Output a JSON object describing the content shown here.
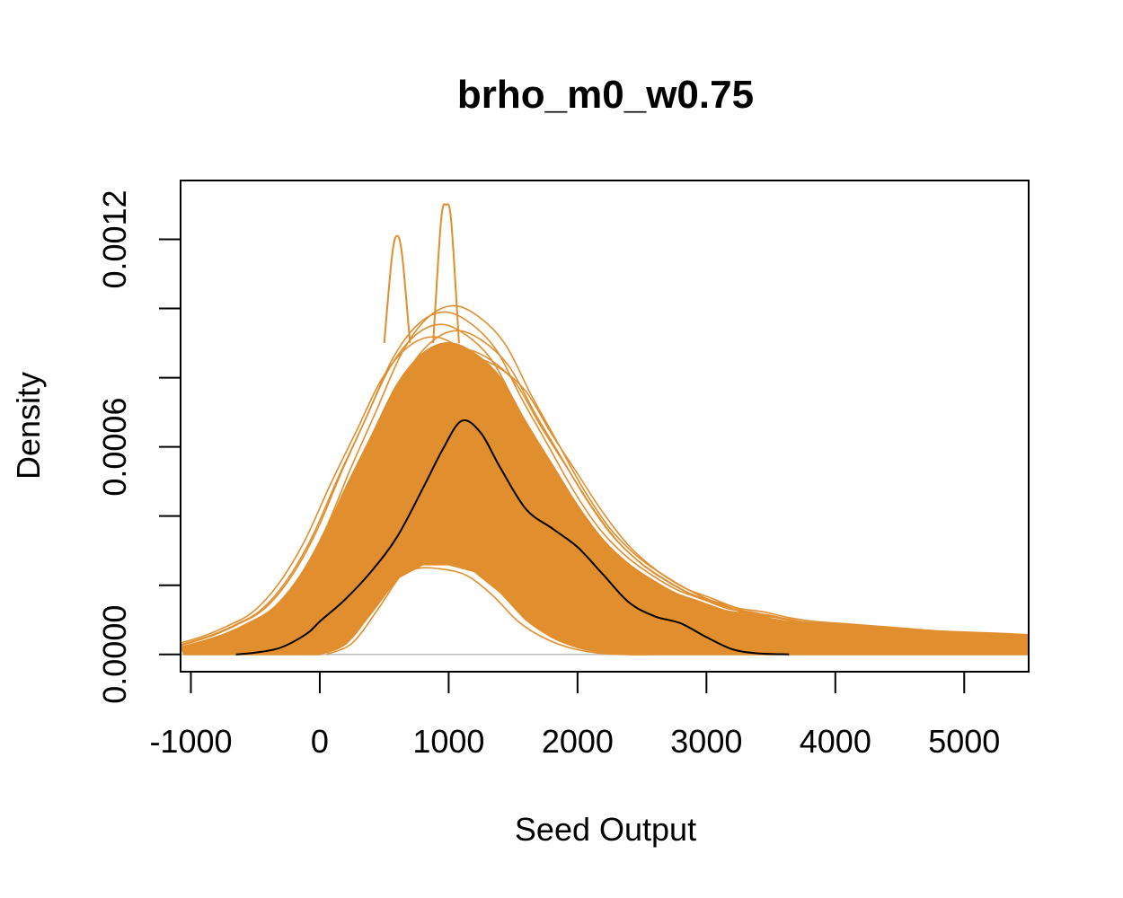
{
  "chart_data": {
    "type": "line",
    "title": "brho_m0_w0.75",
    "xlabel": "Seed Output",
    "ylabel": "Density",
    "xlim": [
      -1080,
      5500
    ],
    "ylim": [
      -5e-05,
      0.00137
    ],
    "x_ticks": [
      -1000,
      0,
      1000,
      2000,
      3000,
      4000,
      5000
    ],
    "x_tick_labels": [
      "-1000",
      "0",
      "1000",
      "2000",
      "3000",
      "4000",
      "5000"
    ],
    "y_ticks": [
      0,
      0.0002,
      0.0004,
      0.0006,
      0.0008,
      0.001,
      0.0012
    ],
    "y_tick_labels": [
      "0.0000",
      "",
      "",
      "0.0006",
      "",
      "",
      "0.0012"
    ],
    "grid": false,
    "legend": "none",
    "colors": {
      "simulated": "#E08E2E",
      "observed": "#000000",
      "baseline": "#BEBEBE"
    },
    "series": [
      {
        "role": "simulated-envelope-upper",
        "x": [
          -1080,
          -800,
          -600,
          -400,
          -200,
          0,
          200,
          400,
          600,
          800,
          1000,
          1200,
          1400,
          1600,
          1800,
          2000,
          2200,
          2400,
          2600,
          2800,
          3000,
          3200,
          3400,
          3600,
          3800,
          4000,
          4400,
          4800,
          5200,
          5500
        ],
        "y": [
          2e-05,
          5e-05,
          8e-05,
          0.00012,
          0.0002,
          0.00032,
          0.00048,
          0.00063,
          0.00078,
          0.00087,
          0.0009,
          0.00087,
          0.0008,
          0.00067,
          0.00055,
          0.00043,
          0.00033,
          0.00026,
          0.00021,
          0.00017,
          0.000145,
          0.00012,
          0.00011,
          9.5e-05,
          8.5e-05,
          8e-05,
          7e-05,
          6e-05,
          5.5e-05,
          5e-05
        ]
      },
      {
        "role": "simulated-envelope-lower",
        "x": [
          0,
          200,
          400,
          600,
          800,
          1000,
          1200,
          1400,
          1600,
          1800,
          2000,
          2200,
          2400,
          2600,
          2800,
          3000,
          3500,
          4000,
          5500
        ],
        "y": [
          0,
          3e-05,
          0.00012,
          0.00022,
          0.00026,
          0.00026,
          0.00024,
          0.00018,
          0.0001,
          5e-05,
          2e-05,
          5e-06,
          0,
          0,
          0,
          0,
          0,
          0,
          0
        ]
      },
      {
        "role": "simulated-spike",
        "x": [
          500,
          560,
          600,
          640,
          700
        ],
        "y": [
          0.0009,
          0.00115,
          0.00121,
          0.00115,
          0.0009
        ]
      },
      {
        "role": "simulated-spike",
        "x": [
          880,
          940,
          980,
          1020,
          1080
        ],
        "y": [
          0.0009,
          0.00125,
          0.0013,
          0.00125,
          0.0009
        ]
      },
      {
        "role": "observed",
        "x": [
          -650,
          -500,
          -300,
          -100,
          0,
          200,
          400,
          600,
          800,
          950,
          1100,
          1250,
          1400,
          1600,
          1800,
          2000,
          2200,
          2400,
          2600,
          2800,
          3000,
          3200,
          3400,
          3640
        ],
        "y": [
          0,
          5e-06,
          2e-05,
          6e-05,
          9.5e-05,
          0.00016,
          0.00024,
          0.00034,
          0.00048,
          0.00059,
          0.000675,
          0.00064,
          0.00054,
          0.00042,
          0.000365,
          0.00031,
          0.00023,
          0.00015,
          0.00011,
          9e-05,
          5e-05,
          1.5e-05,
          3e-06,
          0
        ]
      }
    ]
  }
}
